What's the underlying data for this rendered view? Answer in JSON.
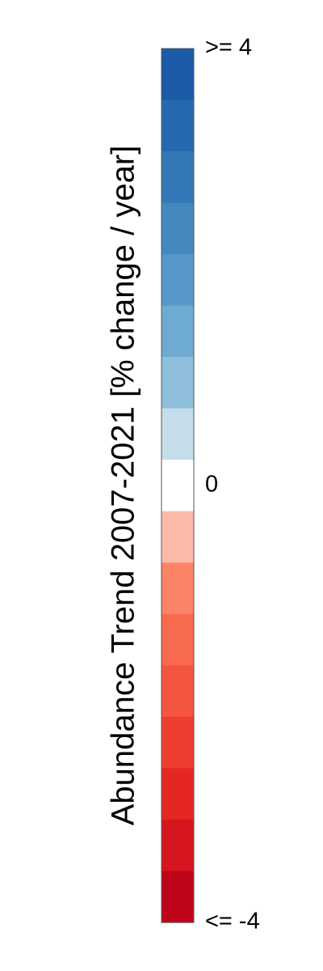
{
  "chart_data": {
    "type": "heatmap",
    "title": "",
    "label": "Abundance Trend 2007-2021 [% change / year]",
    "range": [
      -4,
      4
    ],
    "tick_labels": [
      {
        "value": 4,
        "text": ">= 4"
      },
      {
        "value": 0,
        "text": "0"
      },
      {
        "value": -4,
        "text": "<= -4"
      }
    ],
    "color_bins_top_to_bottom": [
      "#1c5ba7",
      "#2469ae",
      "#3379b7",
      "#4488c0",
      "#5598c9",
      "#6eaad1",
      "#8fbfdc",
      "#c6ddec",
      "#ffffff",
      "#fcbbaa",
      "#fb8466",
      "#f86a4e",
      "#f4553f",
      "#ee3d31",
      "#e52724",
      "#d5161e",
      "#bf0419"
    ]
  }
}
